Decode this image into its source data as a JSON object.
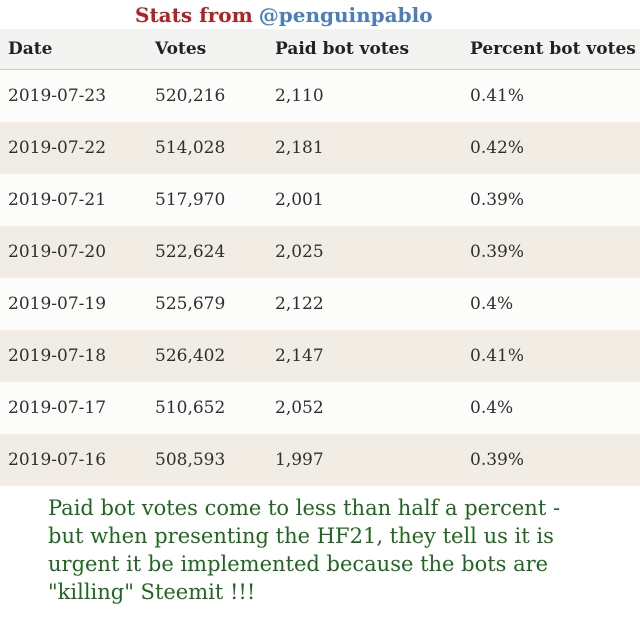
{
  "title": {
    "prefix": "Stats from",
    "handle": "@penguinpablo"
  },
  "colors": {
    "title_red": "#b22222",
    "handle_blue": "#4a7ebd",
    "note_green": "#1e681e",
    "stripe_beige": "#f1ede4",
    "header_bg": "#f3f3f2"
  },
  "chart_data": {
    "type": "table",
    "title": "Stats from @penguinpablo",
    "columns": [
      "Date",
      "Votes",
      "Paid bot votes",
      "Percent bot votes"
    ],
    "rows": [
      [
        "2019-07-23",
        "520,216",
        "2,110",
        "0.41%"
      ],
      [
        "2019-07-22",
        "514,028",
        "2,181",
        "0.42%"
      ],
      [
        "2019-07-21",
        "517,970",
        "2,001",
        "0.39%"
      ],
      [
        "2019-07-20",
        "522,624",
        "2,025",
        "0.39%"
      ],
      [
        "2019-07-19",
        "525,679",
        "2,122",
        "0.4%"
      ],
      [
        "2019-07-18",
        "526,402",
        "2,147",
        "0.41%"
      ],
      [
        "2019-07-17",
        "510,652",
        "2,052",
        "0.4%"
      ],
      [
        "2019-07-16",
        "508,593",
        "1,997",
        "0.39%"
      ]
    ]
  },
  "note": {
    "lines": [
      "Paid bot votes come to less than half a percent -",
      "but when presenting the HF21, they tell us it is",
      "urgent it be implemented because the bots are",
      "\"killing\" Steemit !!!"
    ]
  }
}
